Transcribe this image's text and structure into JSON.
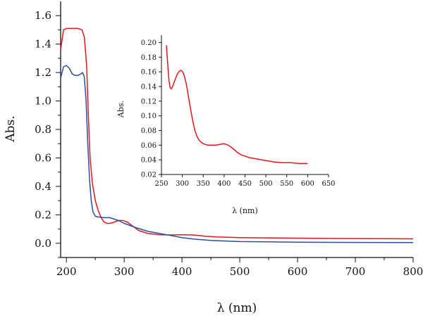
{
  "chart_data": [
    {
      "type": "line",
      "title": "",
      "xlabel": "λ (nm)",
      "ylabel": "Abs.",
      "xlim": [
        190,
        800
      ],
      "ylim": [
        -0.1,
        1.7
      ],
      "xticks": [
        200,
        300,
        400,
        500,
        600,
        700,
        800
      ],
      "xtick_labels": [
        "200",
        "300",
        "400",
        "500",
        "600",
        "700",
        "800"
      ],
      "yticks": [
        0.0,
        0.2,
        0.4,
        0.6,
        0.8,
        1.0,
        1.2,
        1.4,
        1.6
      ],
      "ytick_labels": [
        "0.0",
        "0.2",
        "0.4",
        "0.6",
        "0.8",
        "1.0",
        "1.2",
        "1.4",
        "1.6"
      ],
      "grid": false,
      "legend": "none",
      "series": [
        {
          "color": "#e3161e",
          "points": [
            [
              190,
              1.36
            ],
            [
              195,
              1.5
            ],
            [
              200,
              1.51
            ],
            [
              210,
              1.51
            ],
            [
              220,
              1.51
            ],
            [
              227,
              1.5
            ],
            [
              231,
              1.45
            ],
            [
              235,
              1.25
            ],
            [
              238,
              0.9
            ],
            [
              241,
              0.6
            ],
            [
              245,
              0.42
            ],
            [
              250,
              0.3
            ],
            [
              255,
              0.23
            ],
            [
              260,
              0.18
            ],
            [
              265,
              0.15
            ],
            [
              270,
              0.14
            ],
            [
              275,
              0.14
            ],
            [
              280,
              0.145
            ],
            [
              290,
              0.16
            ],
            [
              298,
              0.16
            ],
            [
              305,
              0.15
            ],
            [
              315,
              0.12
            ],
            [
              325,
              0.09
            ],
            [
              340,
              0.07
            ],
            [
              360,
              0.06
            ],
            [
              380,
              0.058
            ],
            [
              400,
              0.06
            ],
            [
              420,
              0.058
            ],
            [
              440,
              0.05
            ],
            [
              460,
              0.045
            ],
            [
              500,
              0.04
            ],
            [
              550,
              0.038
            ],
            [
              600,
              0.036
            ],
            [
              650,
              0.034
            ],
            [
              700,
              0.033
            ],
            [
              750,
              0.032
            ],
            [
              800,
              0.031
            ]
          ]
        },
        {
          "color": "#2b4ea2",
          "points": [
            [
              190,
              1.16
            ],
            [
              195,
              1.24
            ],
            [
              200,
              1.25
            ],
            [
              205,
              1.23
            ],
            [
              210,
              1.19
            ],
            [
              215,
              1.18
            ],
            [
              220,
              1.18
            ],
            [
              225,
              1.19
            ],
            [
              228,
              1.2
            ],
            [
              231,
              1.17
            ],
            [
              234,
              1.0
            ],
            [
              237,
              0.7
            ],
            [
              240,
              0.45
            ],
            [
              243,
              0.3
            ],
            [
              246,
              0.22
            ],
            [
              250,
              0.19
            ],
            [
              255,
              0.185
            ],
            [
              265,
              0.18
            ],
            [
              275,
              0.18
            ],
            [
              290,
              0.16
            ],
            [
              300,
              0.14
            ],
            [
              320,
              0.11
            ],
            [
              340,
              0.085
            ],
            [
              360,
              0.07
            ],
            [
              380,
              0.055
            ],
            [
              400,
              0.04
            ],
            [
              420,
              0.03
            ],
            [
              450,
              0.02
            ],
            [
              500,
              0.012
            ],
            [
              600,
              0.008
            ],
            [
              700,
              0.006
            ],
            [
              800,
              0.005
            ]
          ]
        }
      ]
    },
    {
      "type": "line",
      "title": "",
      "xlabel": "λ (nm)",
      "ylabel": "Abs.",
      "xlim": [
        250,
        650
      ],
      "ylim": [
        0.02,
        0.21
      ],
      "xticks": [
        250,
        300,
        350,
        400,
        450,
        500,
        550,
        600,
        650
      ],
      "xtick_labels": [
        "250",
        "300",
        "350",
        "400",
        "450",
        "500",
        "550",
        "600",
        "650"
      ],
      "yticks": [
        0.02,
        0.04,
        0.06,
        0.08,
        0.1,
        0.12,
        0.14,
        0.16,
        0.18,
        0.2
      ],
      "ytick_labels": [
        "0.02",
        "0.04",
        "0.06",
        "0.08",
        "0.10",
        "0.12",
        "0.14",
        "0.16",
        "0.18",
        "0.20"
      ],
      "grid": false,
      "legend": "none",
      "series": [
        {
          "color": "#e3161e",
          "points": [
            [
              262,
              0.196
            ],
            [
              265,
              0.17
            ],
            [
              268,
              0.148
            ],
            [
              271,
              0.138
            ],
            [
              274,
              0.137
            ],
            [
              278,
              0.142
            ],
            [
              283,
              0.15
            ],
            [
              288,
              0.157
            ],
            [
              293,
              0.161
            ],
            [
              297,
              0.162
            ],
            [
              301,
              0.16
            ],
            [
              305,
              0.154
            ],
            [
              310,
              0.142
            ],
            [
              315,
              0.125
            ],
            [
              320,
              0.108
            ],
            [
              325,
              0.093
            ],
            [
              330,
              0.08
            ],
            [
              335,
              0.072
            ],
            [
              340,
              0.067
            ],
            [
              345,
              0.064
            ],
            [
              350,
              0.062
            ],
            [
              360,
              0.06
            ],
            [
              370,
              0.06
            ],
            [
              380,
              0.06
            ],
            [
              390,
              0.061
            ],
            [
              400,
              0.062
            ],
            [
              410,
              0.06
            ],
            [
              420,
              0.056
            ],
            [
              430,
              0.051
            ],
            [
              440,
              0.047
            ],
            [
              450,
              0.045
            ],
            [
              460,
              0.043
            ],
            [
              480,
              0.041
            ],
            [
              500,
              0.039
            ],
            [
              520,
              0.037
            ],
            [
              540,
              0.036
            ],
            [
              560,
              0.036
            ],
            [
              580,
              0.035
            ],
            [
              600,
              0.035
            ]
          ]
        }
      ]
    }
  ]
}
